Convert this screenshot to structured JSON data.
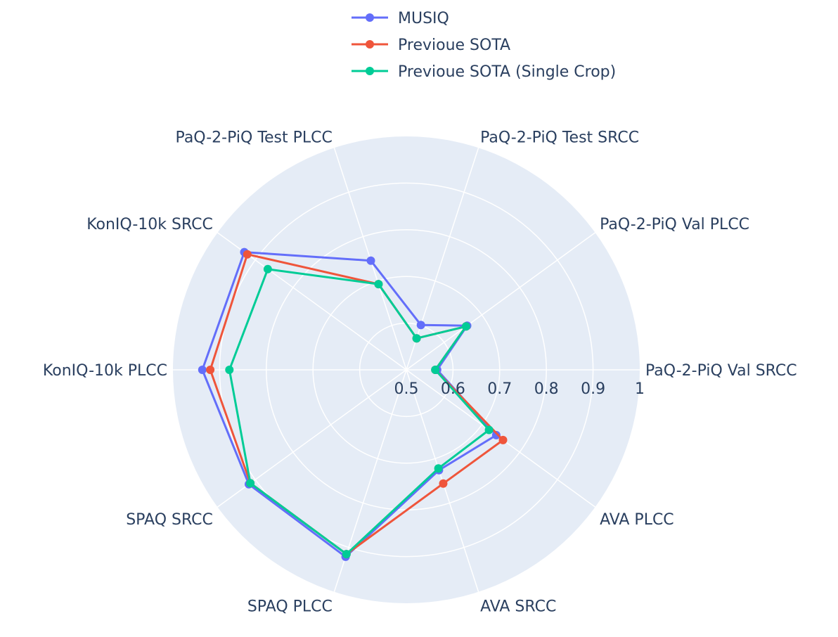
{
  "chart_data": {
    "type": "radar",
    "radial_range": [
      0.5,
      1
    ],
    "radial_ticks": [
      0.5,
      0.6,
      0.7,
      0.8,
      0.9,
      1
    ],
    "radial_tick_labels": [
      "0.5",
      "0.6",
      "0.7",
      "0.8",
      "0.9",
      "1"
    ],
    "theta_labels": [
      "PaQ-2-PiQ Val SRCC",
      "PaQ-2-PiQ Val PLCC",
      "PaQ-2-PiQ Test SRCC",
      "PaQ-2-PiQ Test PLCC",
      "KonIQ-10k SRCC",
      "KonIQ-10k PLCC",
      "SPAQ SRCC",
      "SPAQ PLCC",
      "AVA SRCC",
      "AVA PLCC"
    ],
    "legend_position": "top",
    "series": [
      {
        "name": "MUSIQ",
        "color": "#636efa",
        "values": [
          0.566,
          0.661,
          0.601,
          0.746,
          0.929,
          0.937,
          0.917,
          0.921,
          0.726,
          0.738
        ]
      },
      {
        "name": "Previoue SOTA",
        "color": "#ef553b",
        "values": [
          0.562,
          0.658,
          0.571,
          0.693,
          0.921,
          0.92,
          0.913,
          0.915,
          0.756,
          0.756
        ]
      },
      {
        "name": "Previoue SOTA (Single Crop)",
        "color": "#00cc96",
        "values": [
          0.562,
          0.658,
          0.571,
          0.693,
          0.867,
          0.879,
          0.913,
          0.915,
          0.722,
          0.719
        ]
      }
    ]
  }
}
